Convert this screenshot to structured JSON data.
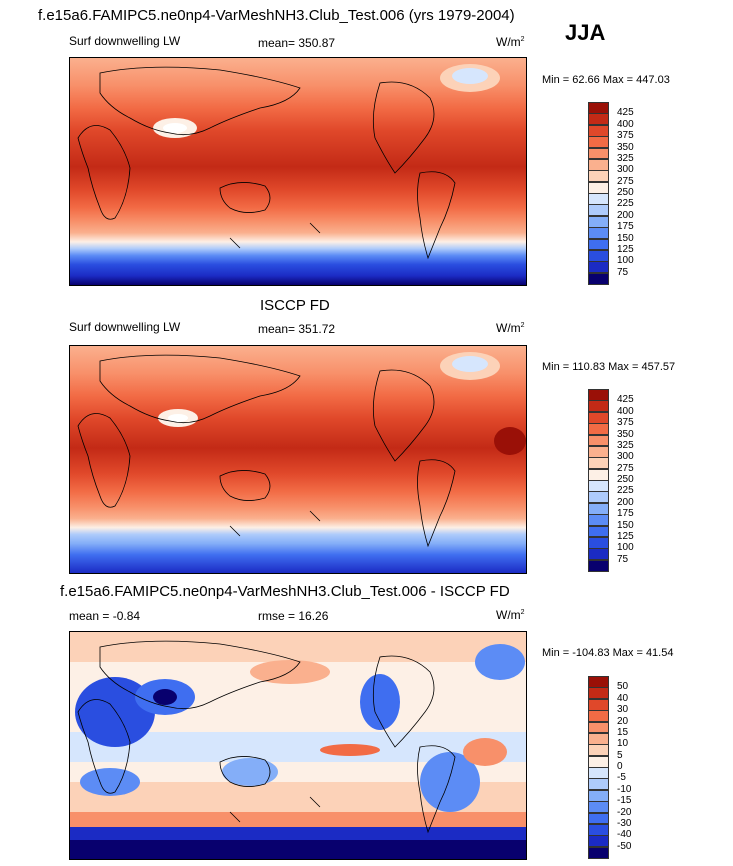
{
  "panels": [
    {
      "id": "model",
      "title": "f.e15a6.FAMIPC5.ne0np4-VarMeshNH3.Club_Test.006 (yrs 1979-2004)",
      "left_label": "Surf downwelling LW",
      "center_label": "mean= 350.87",
      "units": "W/m",
      "units_sup": "2",
      "minmax": "Min =  62.66 Max = 447.03",
      "colorbar": {
        "colors": [
          "#08006e",
          "#1b2bc4",
          "#2a4ee0",
          "#3f6ef0",
          "#5c8cf5",
          "#84aef8",
          "#aecbfb",
          "#d6e6fd",
          "#fdf0e6",
          "#fcd2b8",
          "#fab08e",
          "#f8906a",
          "#f26b45",
          "#e0482a",
          "#c32a16",
          "#9a1007"
        ],
        "labels": [
          "425",
          "400",
          "375",
          "350",
          "325",
          "300",
          "275",
          "250",
          "225",
          "200",
          "175",
          "150",
          "125",
          "100",
          "75"
        ]
      }
    },
    {
      "id": "obs",
      "title": "ISCCP FD",
      "left_label": "Surf downwelling LW",
      "center_label": "mean= 351.72",
      "units": "W/m",
      "units_sup": "2",
      "minmax": "Min = 110.83 Max = 457.57",
      "colorbar": {
        "colors": [
          "#08006e",
          "#1b2bc4",
          "#2a4ee0",
          "#3f6ef0",
          "#5c8cf5",
          "#84aef8",
          "#aecbfb",
          "#d6e6fd",
          "#fdf0e6",
          "#fcd2b8",
          "#fab08e",
          "#f8906a",
          "#f26b45",
          "#e0482a",
          "#c32a16",
          "#9a1007"
        ],
        "labels": [
          "425",
          "400",
          "375",
          "350",
          "325",
          "300",
          "275",
          "250",
          "225",
          "200",
          "175",
          "150",
          "125",
          "100",
          "75"
        ]
      }
    },
    {
      "id": "diff",
      "title": "f.e15a6.FAMIPC5.ne0np4-VarMeshNH3.Club_Test.006 - ISCCP FD",
      "left_label": "mean =  -0.84",
      "center_label": "rmse =  16.26",
      "units": "W/m",
      "units_sup": "2",
      "minmax": "Min = -104.83 Max =  41.54",
      "colorbar": {
        "colors": [
          "#08006e",
          "#1b2bc4",
          "#2a4ee0",
          "#3f6ef0",
          "#5c8cf5",
          "#84aef8",
          "#aecbfb",
          "#d6e6fd",
          "#fdf0e6",
          "#fcd2b8",
          "#fab08e",
          "#f8906a",
          "#f26b45",
          "#e0482a",
          "#c32a16",
          "#9a1007"
        ],
        "labels": [
          "50",
          "40",
          "30",
          "20",
          "15",
          "10",
          "5",
          "0",
          "-5",
          "-10",
          "-15",
          "-20",
          "-30",
          "-40",
          "-50"
        ]
      }
    }
  ],
  "season": "JJA"
}
